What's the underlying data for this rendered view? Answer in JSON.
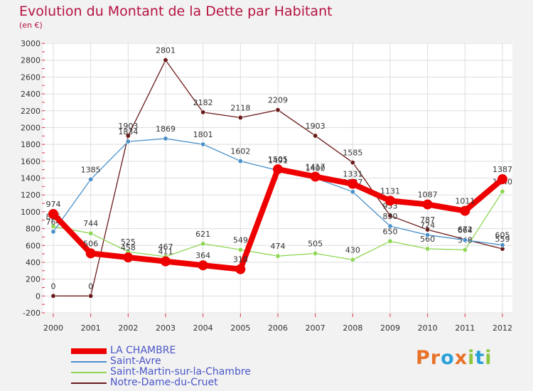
{
  "header": {
    "title": "Evolution du Montant de la Dette par Habitant",
    "subtitle": "(en €)"
  },
  "logo": {
    "text": "Proxiti",
    "letters": [
      "P",
      "r",
      "o",
      "x",
      "i",
      "t",
      "i"
    ],
    "colors": [
      "#e8722a",
      "#e8722a",
      "#2aa0d8",
      "#e8722a",
      "#8cc63e",
      "#2aa0d8",
      "#8cc63e"
    ]
  },
  "chart_data": {
    "type": "line",
    "title": "Evolution du Montant de la Dette par Habitant",
    "subtitle": "(en €)",
    "x": [
      "2000",
      "2001",
      "2002",
      "2003",
      "2004",
      "2005",
      "2006",
      "2007",
      "2008",
      "2009",
      "2010",
      "2011",
      "2012"
    ],
    "ylim": [
      -200,
      3000
    ],
    "yticks": [
      -200,
      0,
      200,
      400,
      600,
      800,
      1000,
      1200,
      1400,
      1600,
      1800,
      2000,
      2200,
      2400,
      2600,
      2800,
      3000
    ],
    "grid": true,
    "legend_position": "bottom-left",
    "series": [
      {
        "name": "LA CHAMBRE",
        "color": "#ee0000",
        "values": [
          974,
          506,
          458,
          411,
          364,
          318,
          1505,
          1417,
          1331,
          1131,
          1087,
          1011,
          1387
        ]
      },
      {
        "name": "Saint-Avre",
        "color": "#4a90c8",
        "values": [
          764,
          1385,
          1834,
          1869,
          1801,
          1602,
          1491,
          1400,
          1237,
          830,
          724,
          664,
          605
        ]
      },
      {
        "name": "Saint-Martin-sur-la-Chambre",
        "color": "#8ed654",
        "values": [
          826,
          744,
          525,
          467,
          621,
          549,
          474,
          505,
          430,
          650,
          560,
          548,
          1240
        ]
      },
      {
        "name": "Notre-Dame-du-Cruet",
        "color": "#6b1a1a",
        "values": [
          0,
          0,
          1903,
          2801,
          2182,
          2118,
          2209,
          1903,
          1585,
          953,
          787,
          672,
          559
        ]
      }
    ]
  }
}
